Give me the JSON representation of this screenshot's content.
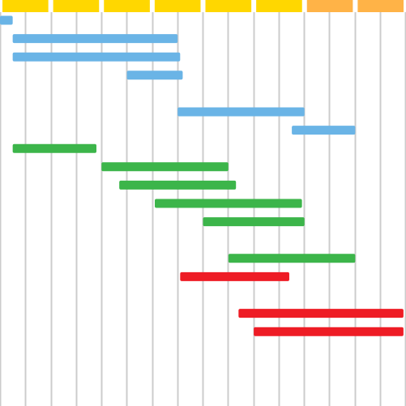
{
  "chart_data": {
    "type": "gantt",
    "x_range": [
      0,
      16
    ],
    "grid": true,
    "header_segments": [
      {
        "start": 0,
        "end": 2,
        "color": "#FFD700"
      },
      {
        "start": 2,
        "end": 4,
        "color": "#FFD700"
      },
      {
        "start": 4,
        "end": 6,
        "color": "#FFD700"
      },
      {
        "start": 6,
        "end": 8,
        "color": "#FFD700"
      },
      {
        "start": 8,
        "end": 10,
        "color": "#FFD700"
      },
      {
        "start": 10,
        "end": 12,
        "color": "#FFD700"
      },
      {
        "start": 12,
        "end": 14,
        "color": "#FFB347"
      },
      {
        "start": 14,
        "end": 16,
        "color": "#FFB347"
      }
    ],
    "row_count": 19,
    "tasks": [
      {
        "start": 0.0,
        "end": 0.5,
        "row": 0,
        "color": "#6AB4E6"
      },
      {
        "start": 0.5,
        "end": 7.0,
        "row": 1,
        "color": "#6AB4E6"
      },
      {
        "start": 0.5,
        "end": 7.1,
        "row": 2,
        "color": "#6AB4E6"
      },
      {
        "start": 5.0,
        "end": 7.2,
        "row": 3,
        "color": "#6AB4E6"
      },
      {
        "start": 7.0,
        "end": 12.0,
        "row": 5,
        "color": "#6AB4E6"
      },
      {
        "start": 11.5,
        "end": 14.0,
        "row": 6,
        "color": "#6AB4E6"
      },
      {
        "start": 0.5,
        "end": 3.8,
        "row": 7,
        "color": "#3CB54A"
      },
      {
        "start": 4.0,
        "end": 9.0,
        "row": 8,
        "color": "#3CB54A"
      },
      {
        "start": 4.7,
        "end": 9.3,
        "row": 9,
        "color": "#3CB54A"
      },
      {
        "start": 6.1,
        "end": 11.9,
        "row": 10,
        "color": "#3CB54A"
      },
      {
        "start": 8.0,
        "end": 12.0,
        "row": 11,
        "color": "#3CB54A"
      },
      {
        "start": 9.0,
        "end": 14.0,
        "row": 13,
        "color": "#3CB54A"
      },
      {
        "start": 7.1,
        "end": 11.4,
        "row": 14,
        "color": "#EE1C25"
      },
      {
        "start": 9.4,
        "end": 15.9,
        "row": 16,
        "color": "#EE1C25"
      },
      {
        "start": 10.0,
        "end": 15.9,
        "row": 17,
        "color": "#EE1C25"
      }
    ]
  }
}
